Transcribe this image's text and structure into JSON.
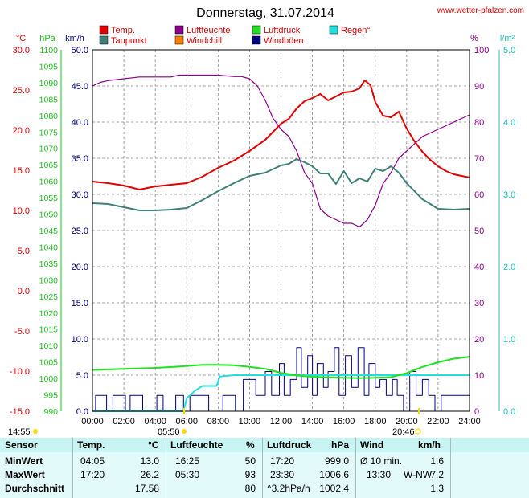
{
  "header": {
    "title": "Donnerstag, 31.07.2014",
    "site": "www.wetter-pfalzen.com"
  },
  "colors": {
    "temp": "#e00000",
    "dewpoint": "#3f7f78",
    "humidity": "#8b008b",
    "windchill": "#ff8000",
    "pressure": "#20e020",
    "gusts": "#000080",
    "rain": "#20e0e0",
    "grid": "#888888"
  },
  "sun": {
    "sunrise": "05:50",
    "sunset": "20:46",
    "start": "14:55"
  },
  "chart_data": {
    "type": "line",
    "legend": [
      "Temp.",
      "Taupunkt",
      "Luftfeuchte",
      "Windchill",
      "Luftdruck",
      "Windböen",
      "Regen°"
    ],
    "axes": {
      "temp": {
        "unit": "°C",
        "min": -15,
        "max": 30,
        "ticks": [
          "30.0",
          "25.0",
          "20.0",
          "15.0",
          "10.0",
          "5.0",
          "0.0",
          "-5.0",
          "-10.0",
          "-15.0"
        ]
      },
      "pressure": {
        "unit": "hPa",
        "min": 990,
        "max": 1100,
        "ticks": [
          "1100",
          "1095",
          "1090",
          "1085",
          "1080",
          "1075",
          "1070",
          "1065",
          "1060",
          "1055",
          "1050",
          "1045",
          "1040",
          "1035",
          "1030",
          "1025",
          "1020",
          "1015",
          "1010",
          "1005",
          "1000",
          "995",
          "990"
        ]
      },
      "wind": {
        "unit": "km/h",
        "min": 0,
        "max": 50,
        "ticks": [
          "50.0",
          "45.0",
          "40.0",
          "35.0",
          "30.0",
          "25.0",
          "20.0",
          "15.0",
          "10.0",
          "5.0",
          "0.0"
        ]
      },
      "humidity": {
        "unit": "%",
        "min": 0,
        "max": 100,
        "ticks": [
          "100",
          "90",
          "80",
          "70",
          "60",
          "50",
          "40",
          "30",
          "20",
          "10",
          "0"
        ]
      },
      "rain": {
        "unit": "l/m²",
        "min": 0,
        "max": 5,
        "ticks": [
          "5.0",
          "4.0",
          "3.0",
          "2.0",
          "1.0",
          "0.0"
        ]
      },
      "x": {
        "min": 0,
        "max": 24,
        "ticks": [
          "00:00",
          "02:00",
          "04:00",
          "06:00",
          "08:00",
          "10:00",
          "12:00",
          "14:00",
          "16:00",
          "18:00",
          "20:00",
          "22:00",
          "24:00"
        ]
      }
    },
    "series": [
      {
        "name": "Temp.",
        "axis": "temp",
        "x": [
          0,
          1,
          2,
          3,
          4,
          4.08,
          5,
          6,
          7,
          8,
          9,
          10,
          10.5,
          11,
          11.5,
          12,
          12.5,
          13,
          13.5,
          14,
          14.5,
          15,
          15.5,
          16,
          16.5,
          17,
          17.33,
          17.7,
          18,
          18.5,
          19,
          19.5,
          20,
          20.5,
          21,
          21.5,
          22,
          22.5,
          23,
          24
        ],
        "y": [
          13.6,
          13.4,
          13.1,
          12.6,
          13.0,
          13.0,
          13.2,
          13.4,
          14.2,
          15.3,
          16.2,
          17.4,
          18.1,
          18.8,
          19.8,
          20.8,
          21.4,
          22.7,
          23.6,
          24.0,
          24.5,
          23.7,
          24.2,
          24.7,
          24.8,
          25.2,
          26.2,
          25.6,
          23.5,
          21.8,
          21.6,
          22.3,
          20.2,
          18.6,
          17.3,
          16.3,
          15.5,
          14.9,
          14.5,
          14.1
        ]
      },
      {
        "name": "Taupunkt",
        "axis": "temp",
        "x": [
          0,
          1,
          2,
          3,
          4,
          5,
          6,
          7,
          8,
          9,
          10,
          11,
          12,
          12.5,
          13,
          13.5,
          14,
          14.5,
          15,
          15.5,
          16,
          16.5,
          17,
          17.5,
          18,
          18.5,
          19,
          19.5,
          20,
          21,
          22,
          23,
          24
        ],
        "y": [
          10.9,
          10.8,
          10.4,
          10.0,
          10.0,
          10.1,
          10.3,
          11.3,
          12.4,
          13.4,
          14.3,
          14.7,
          15.6,
          15.8,
          16.4,
          16.0,
          15.5,
          14.6,
          14.6,
          13.3,
          14.9,
          13.4,
          14.0,
          13.6,
          15.2,
          14.9,
          15.5,
          14.7,
          13.4,
          11.4,
          10.2,
          10.1,
          10.2
        ]
      },
      {
        "name": "Luftfeuchte",
        "axis": "humidity",
        "x": [
          0,
          0.5,
          1,
          2,
          3,
          4,
          5,
          5.5,
          6,
          7,
          8,
          9,
          9.5,
          10,
          10.5,
          11,
          11.5,
          12,
          12.5,
          13,
          13.5,
          14,
          14.5,
          15,
          15.5,
          16,
          16.5,
          17,
          17.5,
          18,
          18.5,
          19,
          19.5,
          20,
          21,
          22,
          23,
          24
        ],
        "y": [
          90,
          91,
          91.5,
          92,
          92.5,
          92.5,
          92.5,
          93,
          93,
          93,
          93,
          92.6,
          92.6,
          92,
          90,
          86,
          81,
          78,
          76,
          72,
          66,
          63,
          56,
          54,
          53,
          52,
          52,
          51,
          53,
          57,
          63,
          66,
          70,
          72,
          76,
          78,
          80,
          82
        ]
      },
      {
        "name": "Luftdruck",
        "axis": "pressure",
        "x": [
          0,
          2,
          4,
          5.5,
          7,
          8,
          9,
          10,
          11,
          12,
          13,
          14,
          15,
          16,
          17,
          18,
          19,
          20,
          21,
          22,
          23,
          24
        ],
        "y": [
          1002.6,
          1002.9,
          1003.2,
          1003.6,
          1004.1,
          1004.1,
          1004.0,
          1003.5,
          1002.9,
          1001.7,
          1000.9,
          1000.5,
          1000.3,
          1000.2,
          1000.1,
          1000.2,
          1000.4,
          1001.6,
          1003.5,
          1004.9,
          1006.0,
          1006.6
        ]
      },
      {
        "name": "Regen°",
        "axis": "rain",
        "x": [
          0,
          5.8,
          6.0,
          6.5,
          7.0,
          7.9,
          8.1,
          9.0,
          24
        ],
        "y": [
          0,
          0,
          0.18,
          0.28,
          0.35,
          0.35,
          0.48,
          0.5,
          0.5
        ]
      },
      {
        "name": "Windböen",
        "axis": "wind",
        "x": [
          0,
          0.2,
          0.2,
          0.9,
          0.9,
          1.3,
          1.3,
          2.1,
          2.1,
          2.4,
          2.4,
          3.2,
          3.2,
          4.1,
          4.1,
          4.5,
          4.5,
          5.3,
          5.3,
          5.8,
          5.8,
          6.2,
          6.2,
          7.4,
          7.4,
          8.3,
          8.3,
          9.1,
          9.1,
          9.6,
          9.6,
          10.4,
          10.4,
          11.0,
          11.0,
          11.4,
          11.4,
          11.9,
          11.9,
          12.2,
          12.2,
          12.6,
          12.6,
          13.0,
          13.0,
          13.3,
          13.3,
          13.7,
          13.7,
          14.0,
          14.0,
          14.3,
          14.3,
          14.7,
          14.7,
          15.0,
          15.0,
          15.4,
          15.4,
          15.7,
          15.7,
          16.1,
          16.1,
          16.5,
          16.5,
          16.9,
          16.9,
          17.3,
          17.3,
          17.6,
          17.6,
          18.0,
          18.0,
          18.3,
          18.3,
          18.7,
          18.7,
          19.1,
          19.1,
          19.4,
          19.4,
          19.8,
          19.8,
          20.2,
          20.2,
          20.6,
          20.6,
          21.0,
          21.0,
          21.4,
          21.4,
          21.8,
          21.8,
          22.2,
          22.2,
          24
        ],
        "y": [
          0,
          0,
          2.2,
          2.2,
          0,
          0,
          2.2,
          2.2,
          0,
          0,
          2.2,
          2.2,
          0,
          0,
          2.2,
          2.2,
          0,
          0,
          2.2,
          2.2,
          0,
          0,
          2.2,
          2.2,
          0,
          0,
          2.2,
          2.2,
          0,
          0,
          4.4,
          4.4,
          2.2,
          2.2,
          5.5,
          5.5,
          2.2,
          2.2,
          6.6,
          6.6,
          2.2,
          2.2,
          4.4,
          4.4,
          8.8,
          8.8,
          3.3,
          3.3,
          7.7,
          7.7,
          2.2,
          2.2,
          6.6,
          6.6,
          3.3,
          3.3,
          5.5,
          5.5,
          8.8,
          8.8,
          2.2,
          2.2,
          7.7,
          7.7,
          3.3,
          3.3,
          8.8,
          8.8,
          2.2,
          2.2,
          6.6,
          6.6,
          3.3,
          3.3,
          4.4,
          4.4,
          2.2,
          2.2,
          4.4,
          4.4,
          2.2,
          2.2,
          0,
          0,
          5.5,
          5.5,
          2.2,
          2.2,
          4.4,
          4.4,
          2.2,
          2.2,
          0,
          0,
          2.2,
          2.2
        ]
      }
    ]
  },
  "summary": {
    "headers": {
      "sensor": "Sensor",
      "temp": "Temp.",
      "temp_unit": "°C",
      "hum": "Luftfeuchte",
      "hum_unit": "%",
      "press": "Luftdruck",
      "press_unit": "hPa",
      "wind": "Wind",
      "wind_unit": "km/h"
    },
    "min": {
      "label": "MinWert",
      "temp_time": "04:05",
      "temp_val": "13.0",
      "hum_time": "16:25",
      "hum_val": "50",
      "press_time": "17:20",
      "press_val": "999.0",
      "wind_label": "Ø 10 min.",
      "wind_val": "1.6"
    },
    "max": {
      "label": "MaxWert",
      "temp_time": "17:20",
      "temp_val": "26.2",
      "hum_time": "05:30",
      "hum_val": "93",
      "press_time": "23:30",
      "press_val": "1006.6",
      "wind_label": "13:30",
      "wind_dir": "W-NW",
      "wind_val": "7.2"
    },
    "avg": {
      "label": "Durchschnitt",
      "temp_val": "17.58",
      "hum_val": "80",
      "press_trend": "^3.2hPa/h",
      "press_val": "1002.4",
      "wind_val": "1.3"
    }
  }
}
